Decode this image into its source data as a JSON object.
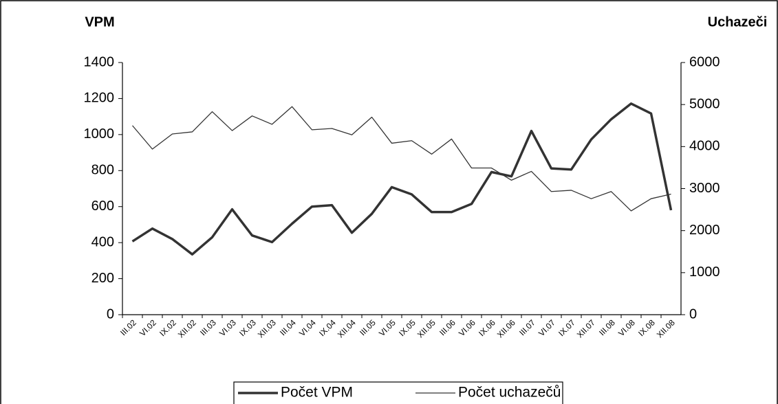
{
  "chart_data": {
    "type": "line",
    "ylabel": "VPM",
    "y2label": "Uchazeči",
    "categories": [
      "III.02",
      "VI.02",
      "IX.02",
      "XII.02",
      "III.03",
      "VI.03",
      "IX.03",
      "XII.03",
      "III.04",
      "VI.04",
      "IX.04",
      "XII.04",
      "III.05",
      "VI.05",
      "IX.05",
      "XII.05",
      "III.06",
      "VI.06",
      "IX.06",
      "XII.06",
      "III.07",
      "VI.07",
      "IX.07",
      "XII.07",
      "III.08",
      "VI.08",
      "IX.08",
      "XII.08"
    ],
    "series": [
      {
        "name": "Počet VPM",
        "color": "#333333",
        "line_width": 3.5,
        "values": [
          407,
          478,
          420,
          335,
          430,
          585,
          440,
          403,
          505,
          600,
          608,
          455,
          560,
          708,
          668,
          570,
          570,
          615,
          792,
          768,
          1020,
          812,
          806,
          973,
          1085,
          1172,
          1117,
          580
        ]
      },
      {
        "name": "Počet uchazečů",
        "color": "#333333",
        "line_width": 1.3,
        "axis": "y2",
        "values": [
          4500,
          3940,
          4300,
          4350,
          4830,
          4380,
          4730,
          4530,
          4950,
          4400,
          4430,
          4280,
          4700,
          4080,
          4140,
          3820,
          4180,
          3490,
          3490,
          3200,
          3410,
          2930,
          2960,
          2760,
          2930,
          2470,
          2760,
          2870
        ]
      }
    ],
    "ylim": [
      0,
      1400
    ],
    "yticks": [
      0,
      200,
      400,
      600,
      800,
      1000,
      1200,
      1400
    ],
    "y2lim": [
      0,
      6000
    ],
    "y2ticks": [
      0,
      1000,
      2000,
      3000,
      4000,
      5000,
      6000
    ],
    "legend": "bottom"
  }
}
